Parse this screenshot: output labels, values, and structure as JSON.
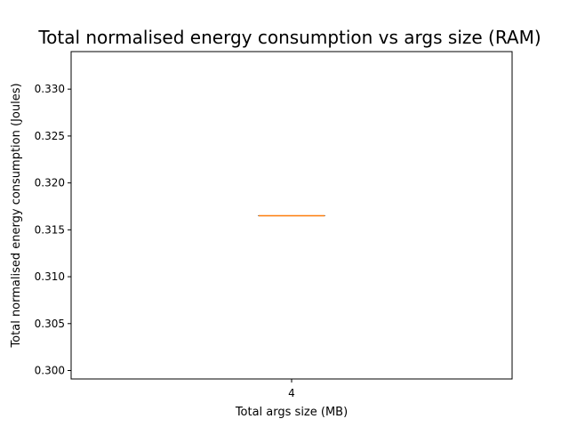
{
  "chart_data": {
    "type": "box",
    "title": "Total normalised energy consumption vs args size (RAM)",
    "xlabel": "Total args size (MB)",
    "ylabel": "Total normalised energy consumption (Joules)",
    "categories": [
      "4"
    ],
    "ylim": [
      0.2991,
      0.334
    ],
    "yticks": [
      0.3,
      0.305,
      0.31,
      0.315,
      0.32,
      0.325,
      0.33
    ],
    "ytick_labels": [
      "0.300",
      "0.305",
      "0.310",
      "0.315",
      "0.320",
      "0.325",
      "0.330"
    ],
    "boxes": [
      {
        "category": "4",
        "min": 0.3165,
        "q1": 0.3165,
        "median": 0.3165,
        "q3": 0.3165,
        "max": 0.3165
      }
    ],
    "colors": {
      "median": "#ff7f0e",
      "box": "#000000",
      "axes": "#000000"
    },
    "grid": false
  }
}
